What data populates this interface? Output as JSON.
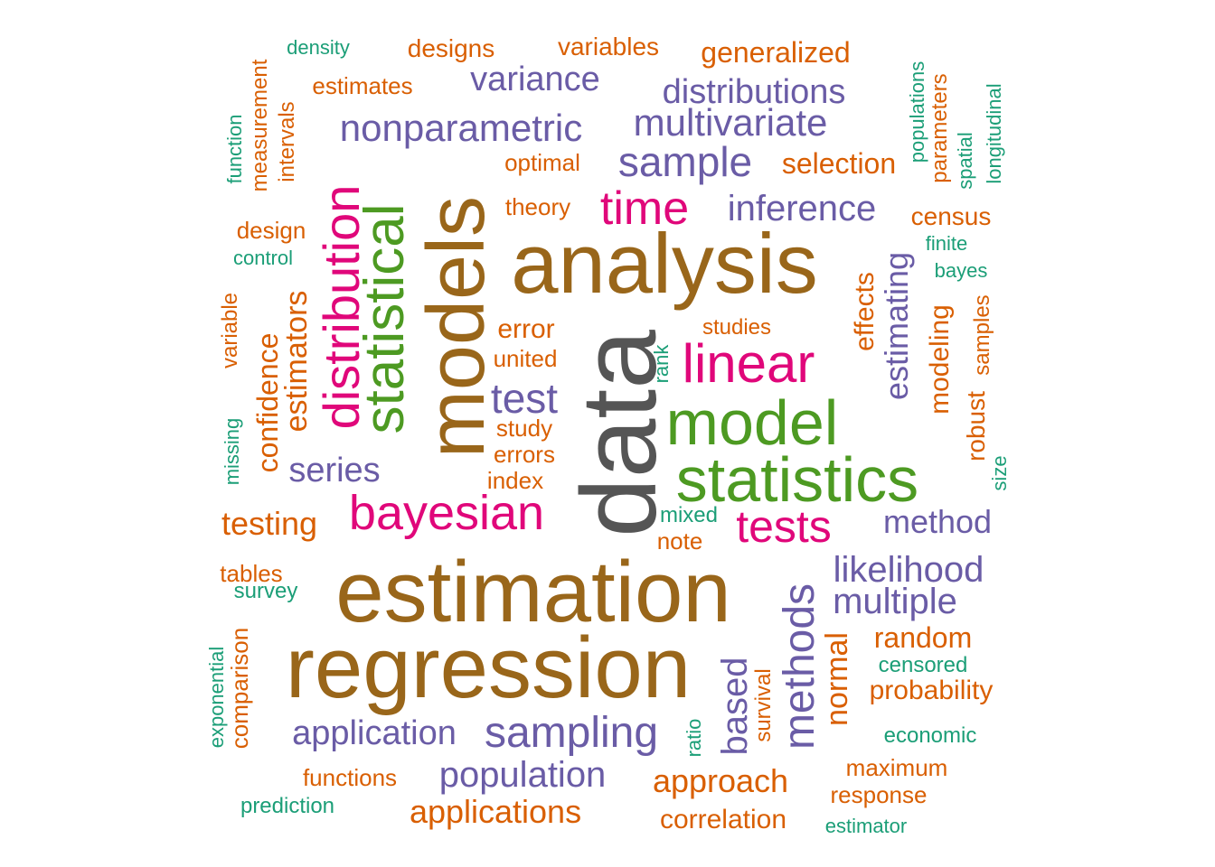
{
  "palette": {
    "brown": "#99661a",
    "gray": "#555555",
    "green": "#4d9a22",
    "magenta": "#e0077a",
    "purple": "#6a5ca6",
    "orange": "#d95f02",
    "teal": "#1b9e77"
  },
  "words": [
    {
      "text": "data",
      "color": "gray",
      "size": 118,
      "vertical": true
    },
    {
      "text": "estimation",
      "color": "brown",
      "size": 96,
      "vertical": false
    },
    {
      "text": "regression",
      "color": "brown",
      "size": 96,
      "vertical": false
    },
    {
      "text": "analysis",
      "color": "brown",
      "size": 94,
      "vertical": false
    },
    {
      "text": "models",
      "color": "brown",
      "size": 90,
      "vertical": true
    },
    {
      "text": "statistics",
      "color": "green",
      "size": 70,
      "vertical": false
    },
    {
      "text": "model",
      "color": "green",
      "size": 70,
      "vertical": false
    },
    {
      "text": "statistical",
      "color": "green",
      "size": 62,
      "vertical": true
    },
    {
      "text": "distribution",
      "color": "magenta",
      "size": 56,
      "vertical": true
    },
    {
      "text": "linear",
      "color": "magenta",
      "size": 60,
      "vertical": false
    },
    {
      "text": "bayesian",
      "color": "magenta",
      "size": 54,
      "vertical": false
    },
    {
      "text": "time",
      "color": "magenta",
      "size": 52,
      "vertical": false
    },
    {
      "text": "tests",
      "color": "magenta",
      "size": 50,
      "vertical": false
    },
    {
      "text": "methods",
      "color": "purple",
      "size": 48,
      "vertical": true
    },
    {
      "text": "sampling",
      "color": "purple",
      "size": 48,
      "vertical": false
    },
    {
      "text": "sample",
      "color": "purple",
      "size": 46,
      "vertical": false
    },
    {
      "text": "test",
      "color": "purple",
      "size": 46,
      "vertical": false
    },
    {
      "text": "population",
      "color": "purple",
      "size": 40,
      "vertical": false
    },
    {
      "text": "nonparametric",
      "color": "purple",
      "size": 42,
      "vertical": false
    },
    {
      "text": "multivariate",
      "color": "purple",
      "size": 42,
      "vertical": false
    },
    {
      "text": "inference",
      "color": "purple",
      "size": 40,
      "vertical": false
    },
    {
      "text": "likelihood",
      "color": "purple",
      "size": 40,
      "vertical": false
    },
    {
      "text": "application",
      "color": "purple",
      "size": 38,
      "vertical": false
    },
    {
      "text": "multiple",
      "color": "purple",
      "size": 40,
      "vertical": false
    },
    {
      "text": "distributions",
      "color": "purple",
      "size": 38,
      "vertical": false
    },
    {
      "text": "variance",
      "color": "purple",
      "size": 38,
      "vertical": false
    },
    {
      "text": "series",
      "color": "purple",
      "size": 38,
      "vertical": false
    },
    {
      "text": "method",
      "color": "purple",
      "size": 36,
      "vertical": false
    },
    {
      "text": "based",
      "color": "purple",
      "size": 40,
      "vertical": true
    },
    {
      "text": "estimating",
      "color": "purple",
      "size": 36,
      "vertical": true
    },
    {
      "text": "approach",
      "color": "orange",
      "size": 36,
      "vertical": false
    },
    {
      "text": "applications",
      "color": "orange",
      "size": 36,
      "vertical": false
    },
    {
      "text": "testing",
      "color": "orange",
      "size": 36,
      "vertical": false
    },
    {
      "text": "estimators",
      "color": "orange",
      "size": 34,
      "vertical": true
    },
    {
      "text": "confidence",
      "color": "orange",
      "size": 32,
      "vertical": true
    },
    {
      "text": "normal",
      "color": "orange",
      "size": 34,
      "vertical": true
    },
    {
      "text": "generalized",
      "color": "orange",
      "size": 32,
      "vertical": false
    },
    {
      "text": "selection",
      "color": "orange",
      "size": 32,
      "vertical": false
    },
    {
      "text": "random",
      "color": "orange",
      "size": 32,
      "vertical": false
    },
    {
      "text": "correlation",
      "color": "orange",
      "size": 30,
      "vertical": false
    },
    {
      "text": "probability",
      "color": "orange",
      "size": 30,
      "vertical": false
    },
    {
      "text": "modeling",
      "color": "orange",
      "size": 30,
      "vertical": true
    },
    {
      "text": "error",
      "color": "orange",
      "size": 30,
      "vertical": false
    },
    {
      "text": "effects",
      "color": "orange",
      "size": 30,
      "vertical": true
    },
    {
      "text": "variables",
      "color": "orange",
      "size": 28,
      "vertical": false
    },
    {
      "text": "designs",
      "color": "orange",
      "size": 28,
      "vertical": false
    },
    {
      "text": "robust",
      "color": "orange",
      "size": 28,
      "vertical": true
    },
    {
      "text": "census",
      "color": "orange",
      "size": 28,
      "vertical": false
    },
    {
      "text": "comparison",
      "color": "orange",
      "size": 26,
      "vertical": true
    },
    {
      "text": "functions",
      "color": "orange",
      "size": 26,
      "vertical": false
    },
    {
      "text": "response",
      "color": "orange",
      "size": 26,
      "vertical": false
    },
    {
      "text": "maximum",
      "color": "orange",
      "size": 26,
      "vertical": false
    },
    {
      "text": "estimates",
      "color": "orange",
      "size": 26,
      "vertical": false
    },
    {
      "text": "theory",
      "color": "orange",
      "size": 26,
      "vertical": false
    },
    {
      "text": "optimal",
      "color": "orange",
      "size": 26,
      "vertical": false
    },
    {
      "text": "design",
      "color": "orange",
      "size": 26,
      "vertical": false
    },
    {
      "text": "united",
      "color": "orange",
      "size": 26,
      "vertical": false
    },
    {
      "text": "study",
      "color": "orange",
      "size": 26,
      "vertical": false
    },
    {
      "text": "tables",
      "color": "orange",
      "size": 26,
      "vertical": false
    },
    {
      "text": "errors",
      "color": "orange",
      "size": 26,
      "vertical": false
    },
    {
      "text": "index",
      "color": "orange",
      "size": 26,
      "vertical": false
    },
    {
      "text": "note",
      "color": "orange",
      "size": 26,
      "vertical": false
    },
    {
      "text": "studies",
      "color": "orange",
      "size": 24,
      "vertical": false
    },
    {
      "text": "measurement",
      "color": "orange",
      "size": 24,
      "vertical": true
    },
    {
      "text": "parameters",
      "color": "orange",
      "size": 24,
      "vertical": true
    },
    {
      "text": "variable",
      "color": "orange",
      "size": 24,
      "vertical": true
    },
    {
      "text": "samples",
      "color": "orange",
      "size": 24,
      "vertical": true
    },
    {
      "text": "intervals",
      "color": "orange",
      "size": 24,
      "vertical": true
    },
    {
      "text": "survival",
      "color": "orange",
      "size": 24,
      "vertical": true
    },
    {
      "text": "prediction",
      "color": "teal",
      "size": 24,
      "vertical": false
    },
    {
      "text": "economic",
      "color": "teal",
      "size": 24,
      "vertical": false
    },
    {
      "text": "censored",
      "color": "teal",
      "size": 24,
      "vertical": false
    },
    {
      "text": "survey",
      "color": "teal",
      "size": 24,
      "vertical": false
    },
    {
      "text": "estimator",
      "color": "teal",
      "size": 22,
      "vertical": false
    },
    {
      "text": "mixed",
      "color": "teal",
      "size": 24,
      "vertical": false
    },
    {
      "text": "density",
      "color": "teal",
      "size": 22,
      "vertical": false
    },
    {
      "text": "control",
      "color": "teal",
      "size": 22,
      "vertical": false
    },
    {
      "text": "bayes",
      "color": "teal",
      "size": 22,
      "vertical": false
    },
    {
      "text": "finite",
      "color": "teal",
      "size": 22,
      "vertical": false
    },
    {
      "text": "rank",
      "color": "teal",
      "size": 22,
      "vertical": true
    },
    {
      "text": "ratio",
      "color": "teal",
      "size": 22,
      "vertical": true
    },
    {
      "text": "function",
      "color": "teal",
      "size": 22,
      "vertical": true
    },
    {
      "text": "missing",
      "color": "teal",
      "size": 22,
      "vertical": true
    },
    {
      "text": "exponential",
      "color": "teal",
      "size": 22,
      "vertical": true
    },
    {
      "text": "populations",
      "color": "teal",
      "size": 22,
      "vertical": true
    },
    {
      "text": "spatial",
      "color": "teal",
      "size": 22,
      "vertical": true
    },
    {
      "text": "longitudinal",
      "color": "teal",
      "size": 22,
      "vertical": true
    },
    {
      "text": "size",
      "color": "teal",
      "size": 22,
      "vertical": true
    }
  ]
}
